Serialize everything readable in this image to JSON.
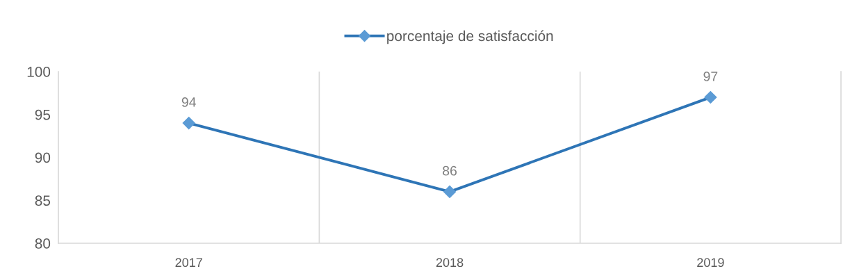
{
  "chart_data": {
    "type": "line",
    "categories": [
      "2017",
      "2018",
      "2019"
    ],
    "series": [
      {
        "name": "porcentaje de satisfacción",
        "color": "#2e75b6",
        "colors": [
          "#5b9bd5",
          "#5b9bd5",
          "#5b9bd5"
        ],
        "values": [
          94,
          86,
          97
        ]
      }
    ],
    "ylim": [
      80,
      100
    ],
    "yticks": [
      80,
      85,
      90,
      95,
      100
    ],
    "grid": "x",
    "legend": "top",
    "marker": "diamond",
    "line_style": "solid",
    "data_labels": true
  }
}
